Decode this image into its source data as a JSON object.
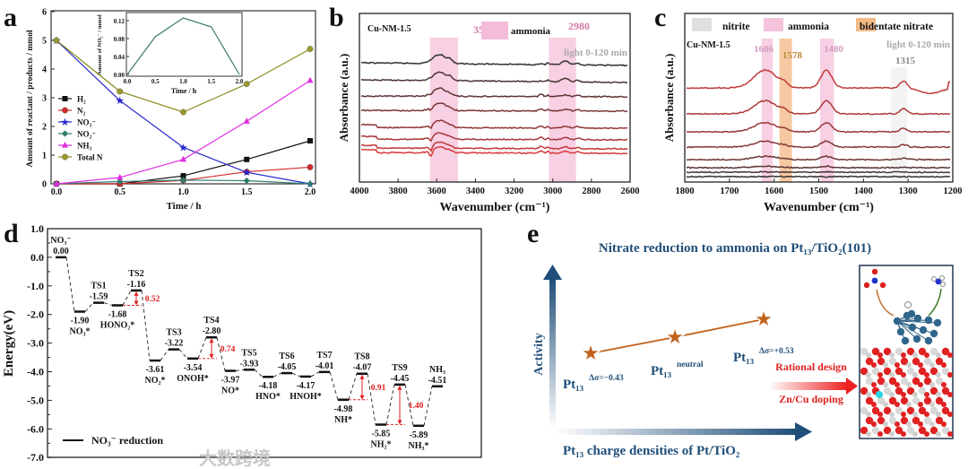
{
  "panel_labels": {
    "a": "a",
    "b": "b",
    "c": "c",
    "d": "d",
    "e": "e"
  },
  "colors": {
    "h2": "#111111",
    "n2": "#d42a2a",
    "no3": "#2727cc",
    "no2": "#2e7d6e",
    "nh3": "#e02ee0",
    "totaln": "#8a8a1e",
    "band_pink": "#f4bcd8",
    "band_orange": "#f2b27a",
    "band_gray": "#dddddd",
    "navy": "#1f4e79",
    "star": "#c0621c",
    "barrier": "#e02020"
  },
  "chart_data": [
    {
      "id": "a",
      "type": "line",
      "xlabel": "Time / h",
      "ylabel": "Amount of reactant / products / mmol",
      "xlim": [
        0,
        2
      ],
      "ylim": [
        0,
        6
      ],
      "xticks": [
        "0.0",
        "0.5",
        "1.0",
        "1.5",
        "2.0"
      ],
      "yticks": [
        "0",
        "1",
        "2",
        "3",
        "4",
        "5",
        "6"
      ],
      "x": [
        0,
        0.5,
        1.0,
        1.5,
        2.0
      ],
      "legend_position": "left-middle",
      "series": [
        {
          "key": "h2",
          "name": "H₂",
          "marker": "square",
          "values": [
            0,
            0.0,
            0.28,
            0.85,
            1.5
          ]
        },
        {
          "key": "n2",
          "name": "N₂",
          "marker": "circle",
          "values": [
            0,
            0.0,
            0.12,
            0.42,
            0.58
          ]
        },
        {
          "key": "no3",
          "name": "NO₃⁻",
          "marker": "star",
          "values": [
            5.0,
            2.9,
            1.27,
            0.4,
            0.0
          ]
        },
        {
          "key": "no2",
          "name": "NO₂⁻",
          "marker": "diamond",
          "values": [
            0,
            0.08,
            0.13,
            0.11,
            0.0
          ]
        },
        {
          "key": "nh3",
          "name": "NH₃",
          "marker": "triangle",
          "values": [
            0,
            0.22,
            0.85,
            2.18,
            3.6
          ]
        },
        {
          "key": "totaln",
          "name": "Total N",
          "marker": "circle",
          "values": [
            5.0,
            3.22,
            2.5,
            3.48,
            4.7
          ]
        }
      ],
      "inset": {
        "type": "line",
        "xlabel": "Time / h",
        "ylabel": "Amount of NO₂⁻ / mmol",
        "xlim": [
          0,
          2
        ],
        "ylim": [
          0,
          0.12
        ],
        "xticks": [
          "0.0",
          "0.5",
          "1.0",
          "1.5",
          "2.0"
        ],
        "yticks": [
          "0.00",
          "0.04",
          "0.08",
          "0.12"
        ],
        "x": [
          0,
          0.5,
          1.0,
          1.5,
          2.0
        ],
        "values": [
          0,
          0.084,
          0.126,
          0.106,
          0
        ]
      }
    },
    {
      "id": "b",
      "type": "line",
      "xlabel": "Wavenumber (cm⁻¹)",
      "ylabel": "Absorbance (a.u.)",
      "xlim": [
        4000,
        2600
      ],
      "xticks": [
        "4000",
        "3800",
        "3600",
        "3400",
        "3200",
        "3000",
        "2800",
        "2600"
      ],
      "sample": "Cu-NM-1.5",
      "condition": "light 0-120 min",
      "legend": [
        {
          "label": "ammonia",
          "color_key": "band_pink"
        }
      ],
      "bands": [
        {
          "label": "3558",
          "from": 3635,
          "to": 3490,
          "color_key": "band_pink"
        },
        {
          "label": "2980",
          "from": 3020,
          "to": 2880,
          "color_key": "band_pink"
        }
      ],
      "trace_count": 8
    },
    {
      "id": "c",
      "type": "line",
      "xlabel": "Wavenumber (cm⁻¹)",
      "ylabel": "Absorbance (a.u.)",
      "xlim": [
        1800,
        1200
      ],
      "xticks": [
        "1800",
        "1700",
        "1600",
        "1500",
        "1400",
        "1300",
        "1200"
      ],
      "sample": "Cu-NM-1.5",
      "condition": "light 0-120 min",
      "legend": [
        {
          "label": "nitrite",
          "color_key": "band_gray"
        },
        {
          "label": "ammonia",
          "color_key": "band_pink"
        },
        {
          "label": "bidentate nitrate",
          "color_key": "band_orange"
        }
      ],
      "bands": [
        {
          "label": "1606",
          "from": 1628,
          "to": 1603,
          "color_key": "band_pink"
        },
        {
          "label": "1578",
          "from": 1588,
          "to": 1560,
          "color_key": "band_orange"
        },
        {
          "label": "1480",
          "from": 1497,
          "to": 1466,
          "color_key": "band_pink"
        },
        {
          "label": "1315",
          "from": 1338,
          "to": 1302,
          "color_key": "band_gray"
        }
      ],
      "trace_count": 8
    },
    {
      "id": "d",
      "type": "line",
      "title": "",
      "ylabel": "Energy(eV)",
      "ylim": [
        -7.0,
        1.0
      ],
      "yticks": [
        "1.0",
        "0.0",
        "-1.0",
        "-2.0",
        "-3.0",
        "-4.0",
        "-5.0",
        "-6.0",
        "-7.0"
      ],
      "legend": "NO₃⁻ reduction",
      "levels": [
        {
          "name": "NO₃⁻",
          "label": "0.00",
          "energy": 0.0
        },
        {
          "name": "NO₃*",
          "label": "-1.90",
          "energy": -1.9
        },
        {
          "name": "TS1",
          "label": "-1.59",
          "energy": -1.59
        },
        {
          "name": "HONO₂*",
          "label": "-1.68",
          "energy": -1.68
        },
        {
          "name": "TS2",
          "label": "-1.16",
          "energy": -1.16
        },
        {
          "name": "NO₂*",
          "label": "-3.61",
          "energy": -3.61
        },
        {
          "name": "TS3",
          "label": "-3.22",
          "energy": -3.22
        },
        {
          "name": "ONOH*",
          "label": "-3.54",
          "energy": -3.54
        },
        {
          "name": "TS4",
          "label": "-2.80",
          "energy": -2.8
        },
        {
          "name": "NO*",
          "label": "-3.97",
          "energy": -3.97
        },
        {
          "name": "TS5",
          "label": "-3.93",
          "energy": -3.93
        },
        {
          "name": "HNO*",
          "label": "-4.18",
          "energy": -4.18
        },
        {
          "name": "TS6",
          "label": "-4.05",
          "energy": -4.05
        },
        {
          "name": "HNOH*",
          "label": "-4.17",
          "energy": -4.17
        },
        {
          "name": "TS7",
          "label": "-4.01",
          "energy": -4.01
        },
        {
          "name": "NH*",
          "label": "-4.98",
          "energy": -4.98
        },
        {
          "name": "TS8",
          "label": "-4.07",
          "energy": -4.07
        },
        {
          "name": "NH₂*",
          "label": "-5.85",
          "energy": -5.85
        },
        {
          "name": "TS9",
          "label": "-4.45",
          "energy": -4.45
        },
        {
          "name": "NH₃*",
          "label": "-5.89",
          "energy": -5.89
        },
        {
          "name": "NH₃",
          "label": "-4.51",
          "energy": -4.51
        }
      ],
      "barriers": [
        {
          "from": 3,
          "to": 4,
          "label": "0.52"
        },
        {
          "from": 7,
          "to": 8,
          "label": "0.74"
        },
        {
          "from": 15,
          "to": 16,
          "label": "0.91"
        },
        {
          "from": 17,
          "to": 18,
          "label": "1.40"
        }
      ]
    }
  ],
  "panel_e": {
    "title": "Nitrate reduction to ammonia on Pt₁₃/TiO₂(101)",
    "y_axis": "Activity",
    "x_axis": "Pt₁₃ charge densities of Pt/TiO₂",
    "points": [
      {
        "base": "Pt₁₃",
        "sup": "Δσ=−0.43"
      },
      {
        "base": "Pt₁₃",
        "sup": "neutral"
      },
      {
        "base": "Pt₁₃",
        "sup": "Δσ=+0.53"
      }
    ],
    "arrow_top": "Rational design",
    "arrow_bottom": "Zn/Cu doping"
  },
  "watermark": "大数跨境"
}
